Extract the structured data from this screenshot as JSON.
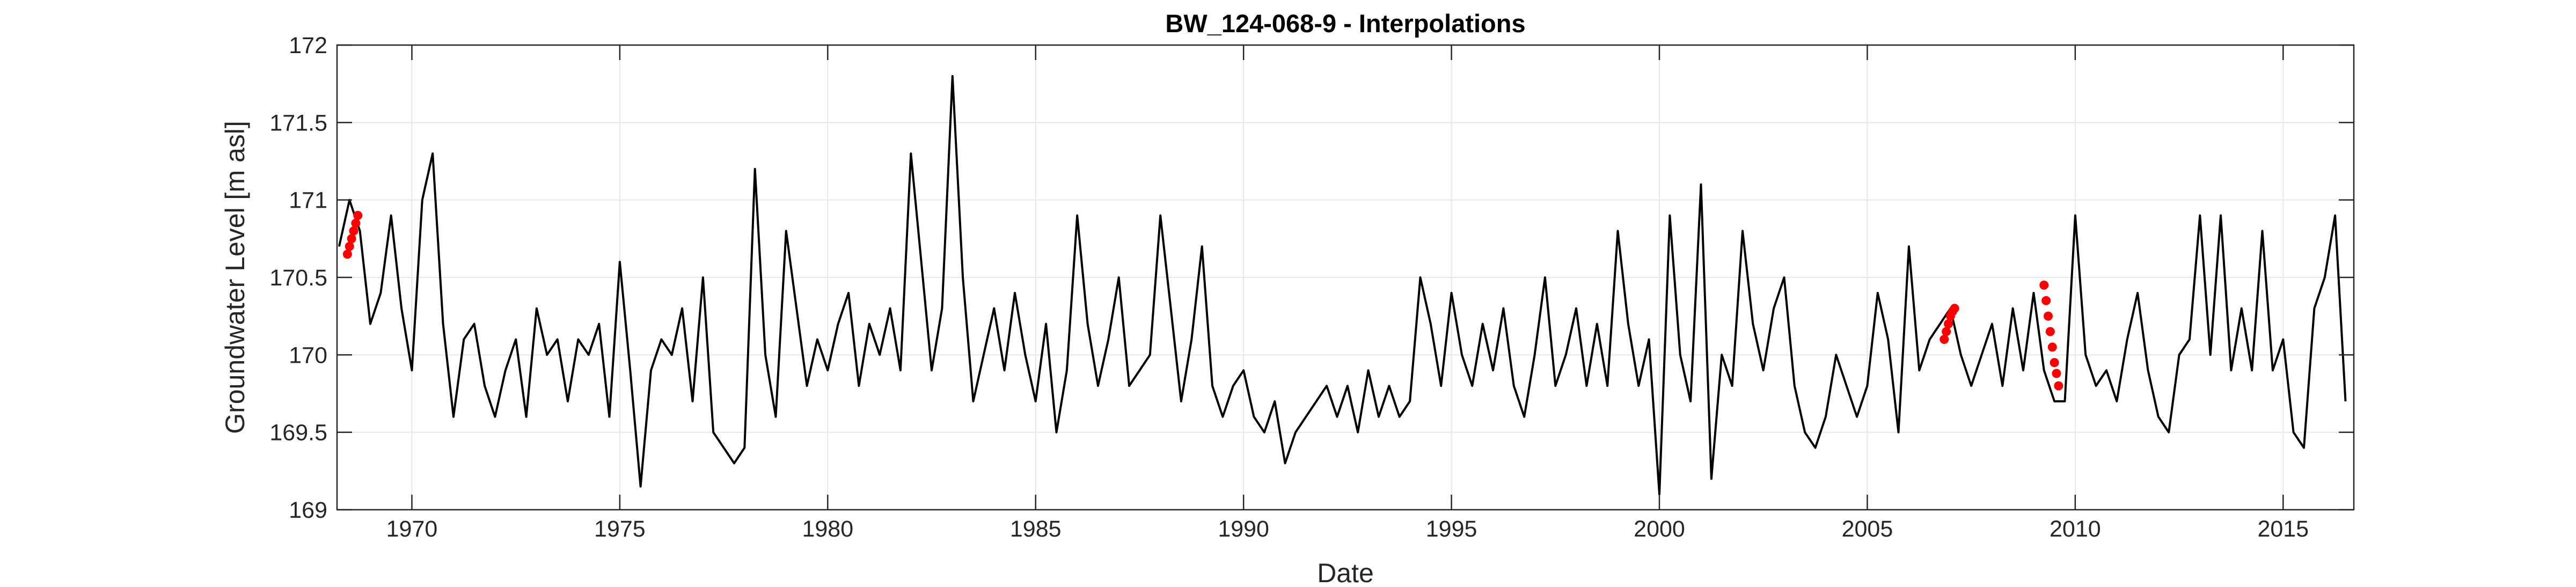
{
  "chart_data": {
    "type": "line",
    "title": "BW_124-068-9 - Interpolations",
    "x_label": "Date",
    "y_label": "Groundwater Level [m asl]",
    "xlim": [
      1968.2,
      2016.7
    ],
    "xticks": [
      1970,
      1975,
      1980,
      1985,
      1990,
      1995,
      2000,
      2005,
      2010,
      2015
    ],
    "ylim": [
      169,
      172
    ],
    "yticks": [
      169,
      169.5,
      170,
      170.5,
      171,
      171.5,
      172
    ],
    "grid": true,
    "series": [
      {
        "color": "#000000",
        "mode": "line",
        "x": [
          1968.25,
          1968.5,
          1968.75,
          1969,
          1969.25,
          1969.5,
          1969.75,
          1970,
          1970.25,
          1970.5,
          1970.75,
          1971,
          1971.25,
          1971.5,
          1971.75,
          1972,
          1972.25,
          1972.5,
          1972.75,
          1973,
          1973.25,
          1973.5,
          1973.75,
          1974,
          1974.25,
          1974.5,
          1974.75,
          1975,
          1975.25,
          1975.5,
          1975.75,
          1976,
          1976.25,
          1976.5,
          1976.75,
          1977,
          1977.25,
          1977.5,
          1977.75,
          1978,
          1978.25,
          1978.5,
          1978.75,
          1979,
          1979.25,
          1979.5,
          1979.75,
          1980,
          1980.25,
          1980.5,
          1980.75,
          1981,
          1981.25,
          1981.5,
          1981.75,
          1982,
          1982.25,
          1982.5,
          1982.75,
          1983,
          1983.25,
          1983.5,
          1983.75,
          1984,
          1984.25,
          1984.5,
          1984.75,
          1985,
          1985.25,
          1985.5,
          1985.75,
          1986,
          1986.25,
          1986.5,
          1986.75,
          1987,
          1987.25,
          1987.5,
          1987.75,
          1988,
          1988.25,
          1988.5,
          1988.75,
          1989,
          1989.25,
          1989.5,
          1989.75,
          1990,
          1990.25,
          1990.5,
          1990.75,
          1991,
          1991.25,
          1991.5,
          1991.75,
          1992,
          1992.25,
          1992.5,
          1992.75,
          1993,
          1993.25,
          1993.5,
          1993.75,
          1994,
          1994.25,
          1994.5,
          1994.75,
          1995,
          1995.25,
          1995.5,
          1995.75,
          1996,
          1996.25,
          1996.5,
          1996.75,
          1997,
          1997.25,
          1997.5,
          1997.75,
          1998,
          1998.25,
          1998.5,
          1998.75,
          1999,
          1999.25,
          1999.5,
          1999.75,
          2000,
          2000.25,
          2000.5,
          2000.75,
          2001,
          2001.25,
          2001.5,
          2001.75,
          2002,
          2002.25,
          2002.5,
          2002.75,
          2003,
          2003.25,
          2003.5,
          2003.75,
          2004,
          2004.25,
          2004.5,
          2004.75,
          2005,
          2005.25,
          2005.5,
          2005.75,
          2006,
          2006.25,
          2006.5,
          2006.75,
          2007,
          2007.25,
          2007.5,
          2007.75,
          2008,
          2008.25,
          2008.5,
          2008.75,
          2009,
          2009.25,
          2009.5,
          2009.75,
          2010,
          2010.25,
          2010.5,
          2010.75,
          2011,
          2011.25,
          2011.5,
          2011.75,
          2012,
          2012.25,
          2012.5,
          2012.75,
          2013,
          2013.25,
          2013.5,
          2013.75,
          2014,
          2014.25,
          2014.5,
          2014.75,
          2015,
          2015.25,
          2015.5,
          2015.75,
          2016,
          2016.25,
          2016.5
        ],
        "values": [
          170.7,
          171.0,
          170.8,
          170.2,
          170.4,
          170.9,
          170.3,
          169.9,
          171.0,
          171.3,
          170.2,
          169.6,
          170.1,
          170.2,
          169.8,
          169.6,
          169.9,
          170.1,
          169.6,
          170.3,
          170.0,
          170.1,
          169.7,
          170.1,
          170.0,
          170.2,
          169.6,
          170.6,
          169.9,
          169.15,
          169.9,
          170.1,
          170.0,
          170.3,
          169.7,
          170.5,
          169.5,
          169.4,
          169.3,
          169.4,
          171.2,
          170.0,
          169.6,
          170.8,
          170.3,
          169.8,
          170.1,
          169.9,
          170.2,
          170.4,
          169.8,
          170.2,
          170.0,
          170.3,
          169.9,
          171.3,
          170.6,
          169.9,
          170.3,
          171.8,
          170.5,
          169.7,
          170.0,
          170.3,
          169.9,
          170.4,
          170.0,
          169.7,
          170.2,
          169.5,
          169.9,
          170.9,
          170.2,
          169.8,
          170.1,
          170.5,
          169.8,
          169.9,
          170.0,
          170.9,
          170.3,
          169.7,
          170.1,
          170.7,
          169.8,
          169.6,
          169.8,
          169.9,
          169.6,
          169.5,
          169.7,
          169.3,
          169.5,
          169.6,
          169.7,
          169.8,
          169.6,
          169.8,
          169.5,
          169.9,
          169.6,
          169.8,
          169.6,
          169.7,
          170.5,
          170.2,
          169.8,
          170.4,
          170.0,
          169.8,
          170.2,
          169.9,
          170.3,
          169.8,
          169.6,
          170.0,
          170.5,
          169.8,
          170.0,
          170.3,
          169.8,
          170.2,
          169.8,
          170.8,
          170.2,
          169.8,
          170.1,
          169.1,
          170.9,
          170.0,
          169.7,
          171.1,
          169.2,
          170.0,
          169.8,
          170.8,
          170.2,
          169.9,
          170.3,
          170.5,
          169.8,
          169.5,
          169.4,
          169.6,
          170.0,
          169.8,
          169.6,
          169.8,
          170.4,
          170.1,
          169.5,
          170.7,
          169.9,
          170.1,
          170.2,
          170.3,
          170.0,
          169.8,
          170.0,
          170.2,
          169.8,
          170.3,
          169.9,
          170.4,
          169.9,
          169.7,
          169.7,
          170.9,
          170.0,
          169.8,
          169.9,
          169.7,
          170.1,
          170.4,
          169.9,
          169.6,
          169.5,
          170.0,
          170.1,
          170.9,
          170.0,
          170.9,
          169.9,
          170.3,
          169.9,
          170.8,
          169.9,
          170.1,
          169.5,
          169.4,
          170.3,
          170.5,
          170.9,
          169.7
        ]
      },
      {
        "color": "#ff0000",
        "mode": "markers",
        "x": [
          1968.45,
          1968.5,
          1968.55,
          1968.6,
          1968.65,
          1968.7,
          2006.85,
          2006.9,
          2006.95,
          2007.0,
          2007.05,
          2007.1,
          2009.25,
          2009.3,
          2009.35,
          2009.4,
          2009.45,
          2009.5,
          2009.55,
          2009.6
        ],
        "values": [
          170.65,
          170.7,
          170.75,
          170.8,
          170.85,
          170.9,
          170.1,
          170.15,
          170.2,
          170.25,
          170.28,
          170.3,
          170.45,
          170.35,
          170.25,
          170.15,
          170.05,
          169.95,
          169.88,
          169.8
        ]
      }
    ]
  }
}
